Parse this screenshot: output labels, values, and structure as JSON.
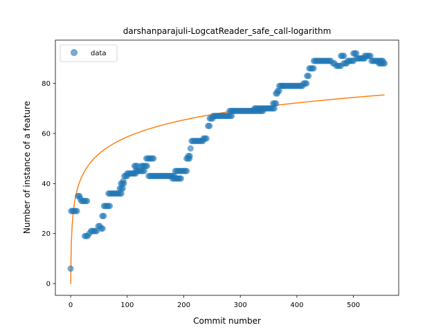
{
  "chart_data": {
    "type": "scatter",
    "title": "darshanparajuli-LogcatReader_safe_call-logarithm",
    "xlabel": "Commit number",
    "ylabel": "Number of instance of a feature",
    "xlim": [
      -27,
      580
    ],
    "ylim": [
      -4.7,
      97.3
    ],
    "xticks": [
      0,
      100,
      200,
      300,
      400,
      500
    ],
    "yticks": [
      0,
      20,
      40,
      60,
      80
    ],
    "legend": {
      "position": "upper-left",
      "entries": [
        "data"
      ]
    },
    "grid": false,
    "colors": {
      "data": "#1f77b4",
      "fit": "#ff7f0e"
    },
    "series": [
      {
        "name": "data",
        "kind": "scatter",
        "segments": [
          [
            0,
            0,
            6
          ],
          [
            1,
            12,
            29
          ],
          [
            13,
            16,
            35
          ],
          [
            17,
            18,
            34
          ],
          [
            19,
            29,
            33
          ],
          [
            25,
            32,
            19
          ],
          [
            33,
            35,
            20
          ],
          [
            36,
            48,
            21
          ],
          [
            49,
            53,
            23
          ],
          [
            54,
            57,
            22
          ],
          [
            56,
            60,
            27
          ],
          [
            59,
            70,
            31
          ],
          [
            67,
            90,
            36
          ],
          [
            87,
            92,
            38
          ],
          [
            89,
            95,
            40
          ],
          [
            93,
            95,
            41
          ],
          [
            95,
            100,
            43
          ],
          [
            100,
            115,
            44
          ],
          [
            113,
            120,
            47
          ],
          [
            115,
            130,
            45
          ],
          [
            125,
            135,
            47
          ],
          [
            134,
            147,
            50
          ],
          [
            138,
            183,
            43
          ],
          [
            180,
            195,
            42
          ],
          [
            185,
            205,
            45
          ],
          [
            205,
            210,
            50
          ],
          [
            208,
            212,
            51
          ],
          [
            212,
            214,
            54
          ],
          [
            214,
            235,
            57
          ],
          [
            235,
            242,
            58
          ],
          [
            243,
            246,
            63
          ],
          [
            246,
            252,
            66
          ],
          [
            252,
            285,
            67
          ],
          [
            281,
            290,
            69
          ],
          [
            290,
            340,
            69
          ],
          [
            325,
            360,
            70
          ],
          [
            358,
            363,
            72
          ],
          [
            363,
            367,
            76
          ],
          [
            366,
            369,
            77
          ],
          [
            369,
            375,
            79
          ],
          [
            375,
            412,
            79
          ],
          [
            412,
            418,
            80
          ],
          [
            418,
            422,
            83
          ],
          [
            422,
            430,
            86
          ],
          [
            430,
            462,
            89
          ],
          [
            464,
            467,
            88
          ],
          [
            470,
            478,
            87
          ],
          [
            478,
            483,
            91
          ],
          [
            483,
            490,
            88
          ],
          [
            490,
            500,
            89
          ],
          [
            500,
            505,
            92
          ],
          [
            505,
            520,
            90
          ],
          [
            520,
            532,
            91
          ],
          [
            532,
            552,
            89
          ],
          [
            545,
            555,
            88
          ]
        ]
      },
      {
        "name": "",
        "kind": "line",
        "fit": "logarithmic",
        "x_range": [
          0,
          555
        ],
        "y_at_x1": 13.5,
        "y_at_x555": 75.4
      }
    ]
  }
}
